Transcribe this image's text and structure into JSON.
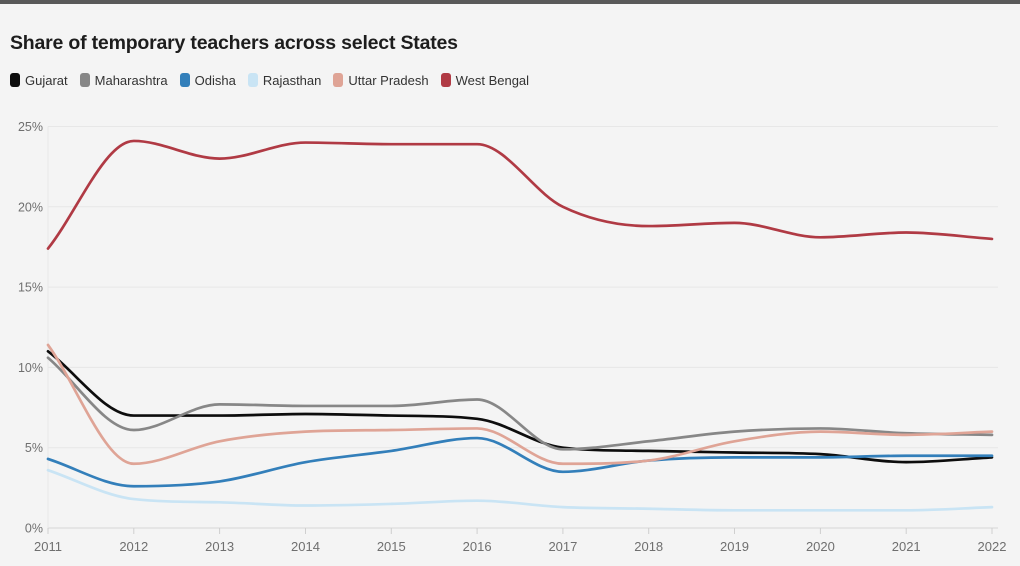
{
  "window": {
    "topbar_color": "#595959",
    "background": "#f4f4f4"
  },
  "header": {
    "title": "Share of temporary teachers across select States"
  },
  "chart_data": {
    "type": "line",
    "title": "Share of temporary teachers across select States",
    "x": [
      "2011",
      "2012",
      "2013",
      "2014",
      "2015",
      "2016",
      "2017",
      "2018",
      "2019",
      "2020",
      "2021",
      "2022"
    ],
    "series": [
      {
        "name": "Gujarat",
        "color": "#0d0d0d",
        "values": [
          11.0,
          7.0,
          7.0,
          7.1,
          7.0,
          6.8,
          5.0,
          4.8,
          4.7,
          4.6,
          4.1,
          4.4
        ]
      },
      {
        "name": "Maharashtra",
        "color": "#878787",
        "values": [
          10.6,
          6.1,
          7.7,
          7.6,
          7.6,
          8.0,
          4.9,
          5.4,
          6.0,
          6.2,
          5.9,
          5.8
        ]
      },
      {
        "name": "Odisha",
        "color": "#337fba",
        "values": [
          4.3,
          2.6,
          2.9,
          4.1,
          4.8,
          5.6,
          3.5,
          4.2,
          4.4,
          4.4,
          4.5,
          4.5
        ]
      },
      {
        "name": "Rajasthan",
        "color": "#c9e4f4",
        "values": [
          3.6,
          1.8,
          1.6,
          1.4,
          1.5,
          1.7,
          1.3,
          1.2,
          1.1,
          1.1,
          1.1,
          1.3
        ]
      },
      {
        "name": "Uttar Pradesh",
        "color": "#dfa496",
        "values": [
          11.4,
          4.0,
          5.4,
          6.0,
          6.1,
          6.2,
          4.0,
          4.2,
          5.4,
          6.0,
          5.8,
          6.0
        ]
      },
      {
        "name": "West Bengal",
        "color": "#b03a44",
        "values": [
          17.4,
          24.1,
          23.0,
          24.0,
          23.9,
          23.9,
          20.0,
          18.8,
          19.0,
          18.1,
          18.4,
          18.0
        ]
      }
    ],
    "xlabel": "",
    "ylabel": "",
    "ylim": [
      0,
      25
    ],
    "yticks": [
      0,
      5,
      10,
      15,
      20,
      25
    ],
    "ytick_labels": [
      "0%",
      "5%",
      "10%",
      "15%",
      "20%",
      "25%"
    ],
    "grid": "horizontal",
    "legend_position": "top",
    "axis_text_color": "#6f6f6f",
    "grid_color": "#e7e7e7",
    "baseline_color": "#d6d6d6"
  }
}
